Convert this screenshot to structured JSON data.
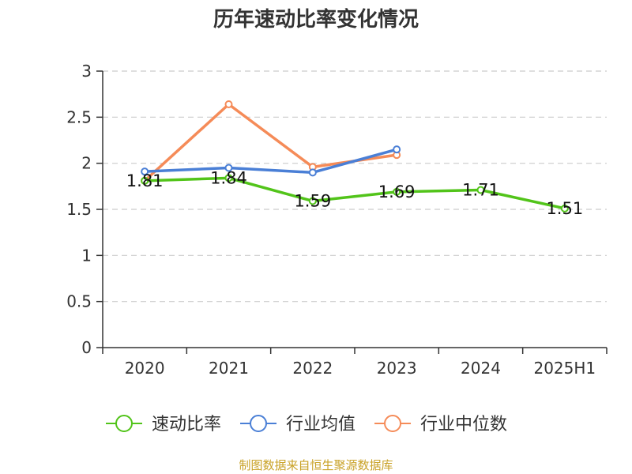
{
  "title": "历年速动比率变化情况",
  "source": "制图数据来自恒生聚源数据库",
  "chart_data": {
    "type": "line",
    "title": "历年速动比率变化情况",
    "categories": [
      "2020",
      "2021",
      "2022",
      "2023",
      "2024",
      "2025H1"
    ],
    "ylim": [
      0,
      3
    ],
    "yticks": [
      "0",
      "0.5",
      "1",
      "1.5",
      "2",
      "2.5",
      "3"
    ],
    "grid": true,
    "legend_position": "bottom",
    "series": [
      {
        "name": "速动比率",
        "color": "#52c41a",
        "values": [
          1.81,
          1.84,
          1.59,
          1.69,
          1.71,
          1.51
        ],
        "labels": [
          "1.81",
          "1.84",
          "1.59",
          "1.69",
          "1.71",
          "1.51"
        ]
      },
      {
        "name": "行业均值",
        "color": "#4a7fd6",
        "values": [
          1.91,
          1.95,
          1.9,
          2.15,
          null,
          null
        ]
      },
      {
        "name": "行业中位数",
        "color": "#f58b58",
        "values": [
          1.81,
          2.64,
          1.96,
          2.09,
          null,
          null
        ]
      }
    ]
  }
}
